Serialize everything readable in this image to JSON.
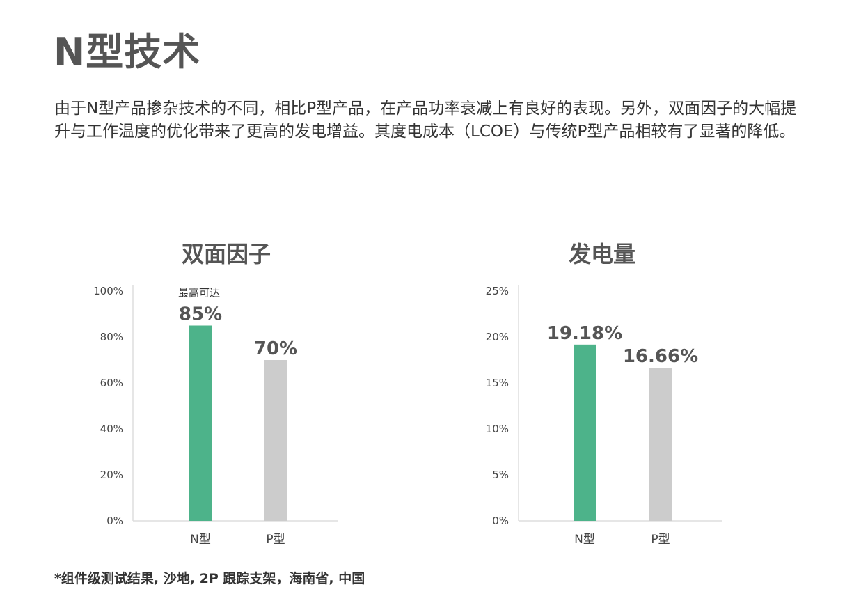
{
  "page": {
    "title": "N型技术",
    "intro": "由于N型产品掺杂技术的不同，相比P型产品，在产品功率衰减上有良好的表现。另外，双面因子的大幅提升与工作温度的优化带来了更高的发电增益。其度电成本（LCOE）与传统P型产品相较有了显著的降低。",
    "footnote": "*组件级测试结果, 沙地, 2P 跟踪支架，海南省, 中国"
  },
  "colors": {
    "n_bar": "#4db38a",
    "p_bar": "#cccccc",
    "title": "#555555"
  },
  "chart_data": [
    {
      "type": "bar",
      "title": "双面因子",
      "categories": [
        "N型",
        "P型"
      ],
      "values": [
        85,
        70
      ],
      "value_labels": [
        "85%",
        "70%"
      ],
      "annotation": "最高可达",
      "annotation_category": "N型",
      "ylim": [
        0,
        100
      ],
      "yticks": [
        "0%",
        "20%",
        "40%",
        "60%",
        "80%",
        "100%"
      ],
      "grid": false
    },
    {
      "type": "bar",
      "title": "发电量",
      "categories": [
        "N型",
        "P型"
      ],
      "values": [
        19.18,
        16.66
      ],
      "value_labels": [
        "19.18%",
        "16.66%"
      ],
      "ylim": [
        0,
        25
      ],
      "yticks": [
        "0%",
        "5%",
        "10%",
        "15%",
        "20%",
        "25%"
      ],
      "grid": false
    }
  ]
}
